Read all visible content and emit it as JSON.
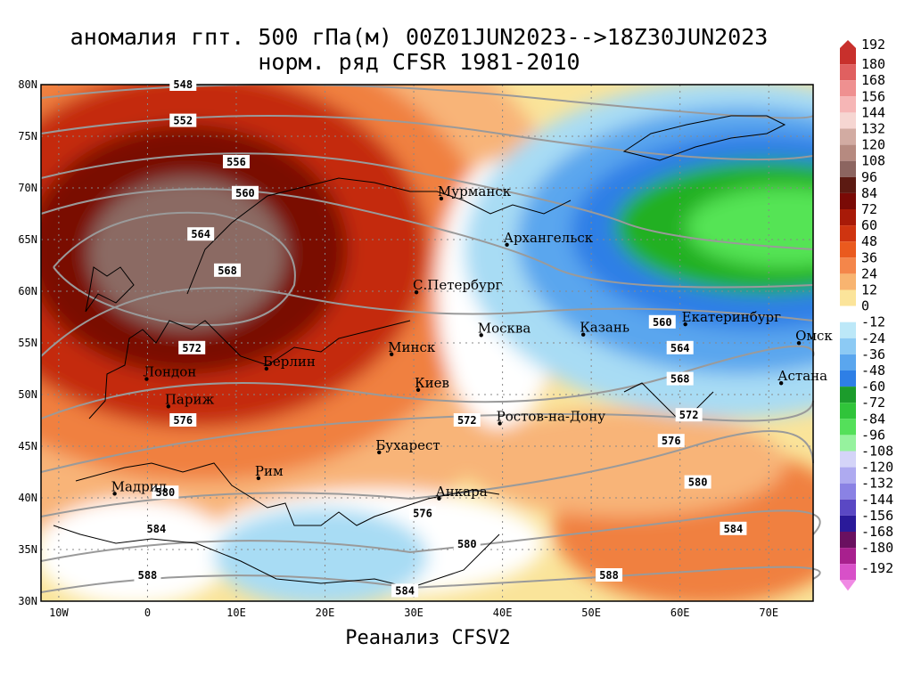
{
  "title": {
    "line1": "аномалия гпт. 500 гПа(м) 00Z01JUN2023-->18Z30JUN2023",
    "line2": "норм. ряд CFSR 1981-2010"
  },
  "credit": "Реанализ CFSV2",
  "map": {
    "lon_ticks": [
      "10W",
      "0",
      "10E",
      "20E",
      "30E",
      "40E",
      "50E",
      "60E",
      "70E"
    ],
    "lat_ticks": [
      "80N",
      "75N",
      "70N",
      "65N",
      "60N",
      "55N",
      "50N",
      "45N",
      "40N",
      "35N",
      "30N"
    ],
    "extent": {
      "lon_min": -12,
      "lon_max": 75,
      "lat_min": 30,
      "lat_max": 80
    },
    "cities": [
      {
        "name": "Мурманск",
        "lon": 33.1,
        "lat": 68.97
      },
      {
        "name": "Архангельск",
        "lon": 40.5,
        "lat": 64.5
      },
      {
        "name": "С.Петербург",
        "lon": 30.3,
        "lat": 59.9
      },
      {
        "name": "Москва",
        "lon": 37.6,
        "lat": 55.75
      },
      {
        "name": "Казань",
        "lon": 49.1,
        "lat": 55.8
      },
      {
        "name": "Екатеринбург",
        "lon": 60.6,
        "lat": 56.8
      },
      {
        "name": "Омск",
        "lon": 73.4,
        "lat": 54.98
      },
      {
        "name": "Астана",
        "lon": 71.4,
        "lat": 51.1
      },
      {
        "name": "Минск",
        "lon": 27.5,
        "lat": 53.9
      },
      {
        "name": "Киев",
        "lon": 30.5,
        "lat": 50.45
      },
      {
        "name": "Берлин",
        "lon": 13.4,
        "lat": 52.5
      },
      {
        "name": "Лондон",
        "lon": -0.1,
        "lat": 51.5
      },
      {
        "name": "Париж",
        "lon": 2.35,
        "lat": 48.85
      },
      {
        "name": "Ростов-на-Дону",
        "lon": 39.7,
        "lat": 47.2
      },
      {
        "name": "Бухарест",
        "lon": 26.1,
        "lat": 44.4
      },
      {
        "name": "Рим",
        "lon": 12.5,
        "lat": 41.9
      },
      {
        "name": "Мадрид",
        "lon": -3.7,
        "lat": 40.4
      },
      {
        "name": "Анкара",
        "lon": 32.85,
        "lat": 39.93
      }
    ],
    "contour_labels": [
      {
        "text": "548",
        "lon": 4,
        "lat": 80
      },
      {
        "text": "552",
        "lon": 4,
        "lat": 76.5
      },
      {
        "text": "556",
        "lon": 10,
        "lat": 72.5
      },
      {
        "text": "560",
        "lon": 11,
        "lat": 69.5
      },
      {
        "text": "564",
        "lon": 6,
        "lat": 65.5
      },
      {
        "text": "568",
        "lon": 9,
        "lat": 62
      },
      {
        "text": "572",
        "lon": 5,
        "lat": 54.5
      },
      {
        "text": "576",
        "lon": 4,
        "lat": 47.5
      },
      {
        "text": "580",
        "lon": 2,
        "lat": 40.5
      },
      {
        "text": "584",
        "lon": 1,
        "lat": 37
      },
      {
        "text": "588",
        "lon": 0,
        "lat": 32.5
      },
      {
        "text": "572",
        "lon": 36,
        "lat": 47.5
      },
      {
        "text": "576",
        "lon": 31,
        "lat": 38.5
      },
      {
        "text": "580",
        "lon": 36,
        "lat": 35.5
      },
      {
        "text": "584",
        "lon": 29,
        "lat": 31
      },
      {
        "text": "588",
        "lon": 52,
        "lat": 32.5
      },
      {
        "text": "560",
        "lon": 58,
        "lat": 57
      },
      {
        "text": "564",
        "lon": 60,
        "lat": 54.5
      },
      {
        "text": "568",
        "lon": 60,
        "lat": 51.5
      },
      {
        "text": "572",
        "lon": 61,
        "lat": 48
      },
      {
        "text": "576",
        "lon": 59,
        "lat": 45.5
      },
      {
        "text": "580",
        "lon": 62,
        "lat": 41.5
      },
      {
        "text": "584",
        "lon": 66,
        "lat": 37
      }
    ],
    "anomaly_field_colors": {
      "strong_positive_core": "#8b6a63",
      "dark_red": "#5c0a0a",
      "red": "#c42a0e",
      "orange": "#f08040",
      "light_orange": "#f8b478",
      "pale_yellow": "#fae49a",
      "white": "#ffffff",
      "light_blue": "#a8dcf4",
      "blue": "#2e7fe6",
      "green": "#22b022",
      "light_green": "#54e454"
    }
  },
  "legend": {
    "values": [
      "192",
      "180",
      "168",
      "156",
      "144",
      "132",
      "120",
      "108",
      "96",
      "84",
      "72",
      "60",
      "48",
      "36",
      "24",
      "12",
      "0",
      "-12",
      "-24",
      "-36",
      "-48",
      "-60",
      "-72",
      "-84",
      "-96",
      "-108",
      "-120",
      "-132",
      "-144",
      "-156",
      "-168",
      "-180",
      "-192"
    ],
    "colors": [
      "#c8302c",
      "#e06060",
      "#ef9090",
      "#f6b6b6",
      "#f6d6d2",
      "#d2aba2",
      "#b68a80",
      "#8c6560",
      "#5c1a12",
      "#7a0a06",
      "#a81a08",
      "#cf3410",
      "#ea5a1e",
      "#f4864a",
      "#f8b470",
      "#fbe49a",
      "#ffffff",
      "#bce8f8",
      "#8ccaf4",
      "#5aa6ee",
      "#2e7fe6",
      "#1c9c2c",
      "#30c43a",
      "#54e05a",
      "#96f29e",
      "#d4d4f8",
      "#aeaaf0",
      "#8a82e4",
      "#5a48c4",
      "#2a1a9a",
      "#6a1060",
      "#a8208e",
      "#d850c8",
      "#f08ae4"
    ]
  }
}
